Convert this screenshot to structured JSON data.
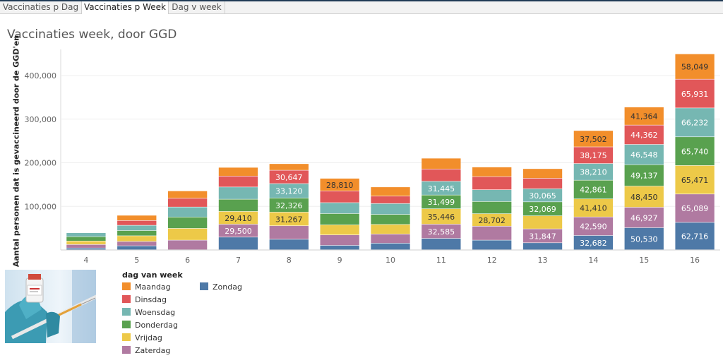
{
  "tabs": [
    {
      "label": "Vaccinaties p Dag"
    },
    {
      "label": "Vaccinaties p Week"
    },
    {
      "label": "Dag v week"
    }
  ],
  "active_tab": 1,
  "colors": {
    "Maandag": "#f28e2b",
    "Dinsdag": "#e15759",
    "Woensdag": "#76b7b2",
    "Donderdag": "#59a14f",
    "Vrijdag": "#edc948",
    "Zaterdag": "#b07aa1",
    "Zondag": "#4e79a7"
  },
  "illustration": {
    "icon": "vaccine-vial-syringe-photo"
  },
  "chart_data": {
    "type": "bar",
    "stacked": true,
    "title": "Vaccinaties week, door GGD",
    "ylabel": "Aantal personen dat is gevaccineerd door de GGD'en",
    "xlabel": "",
    "ylim": [
      0,
      460000
    ],
    "yticks": [
      100000,
      200000,
      300000,
      400000
    ],
    "ytick_labels": [
      "100,000",
      "200,000",
      "300,000",
      "400,000"
    ],
    "grid": true,
    "legend_title": "dag van week",
    "legend_position": "bottom-left",
    "categories": [
      "4",
      "5",
      "6",
      "7",
      "8",
      "9",
      "10",
      "11",
      "12",
      "13",
      "14",
      "15",
      "16"
    ],
    "series": [
      {
        "name": "Zondag",
        "values": [
          4000,
          9000,
          0,
          29000,
          24000,
          10000,
          15000,
          26000,
          22000,
          16000,
          32682,
          50530,
          62716
        ],
        "labels": [
          "",
          "",
          "",
          "",
          "",
          "",
          "",
          "",
          "",
          "",
          "32,682",
          "50,530",
          "62,716"
        ]
      },
      {
        "name": "Zaterdag",
        "values": [
          8000,
          10000,
          22000,
          29500,
          31000,
          24000,
          21000,
          32585,
          32000,
          31847,
          42590,
          46927,
          65089
        ],
        "labels": [
          "",
          "",
          "",
          "29,500",
          "",
          "",
          "",
          "32,585",
          "",
          "31,847",
          "42,590",
          "46,927",
          "65,089"
        ]
      },
      {
        "name": "Vrijdag",
        "values": [
          8000,
          13000,
          27000,
          29410,
          31267,
          23000,
          22000,
          35446,
          28702,
          30000,
          41410,
          48450,
          65471
        ],
        "labels": [
          "",
          "",
          "",
          "29,410",
          "31,267",
          "",
          "",
          "35,446",
          "28,702",
          "",
          "41,410",
          "48,450",
          "65,471"
        ]
      },
      {
        "name": "Donderdag",
        "values": [
          10000,
          12000,
          26000,
          28000,
          32326,
          26000,
          23000,
          31499,
          28000,
          32069,
          42861,
          49137,
          65740
        ],
        "labels": [
          "",
          "",
          "",
          "",
          "32,326",
          "",
          "",
          "31,499",
          "",
          "32,069",
          "42,861",
          "49,137",
          "65,740"
        ]
      },
      {
        "name": "Woensdag",
        "values": [
          9000,
          12000,
          23000,
          28000,
          33120,
          25000,
          25000,
          31445,
          27000,
          30065,
          38210,
          46548,
          66232
        ],
        "labels": [
          "",
          "",
          "",
          "",
          "33,120",
          "",
          "",
          "31,445",
          "",
          "30,065",
          "38,210",
          "46,548",
          "66,232"
        ]
      },
      {
        "name": "Dinsdag",
        "values": [
          0,
          11000,
          20000,
          25000,
          30647,
          27000,
          17000,
          28000,
          30000,
          24000,
          38175,
          44362,
          65931
        ],
        "labels": [
          "",
          "",
          "",
          "",
          "30,647",
          "",
          "",
          "",
          "",
          "",
          "38,175",
          "44,362",
          "65,931"
        ]
      },
      {
        "name": "Maandag",
        "values": [
          0,
          12000,
          17000,
          20000,
          15000,
          28810,
          21000,
          25000,
          22000,
          22000,
          37502,
          41364,
          58049
        ],
        "labels": [
          "",
          "",
          "",
          "",
          "",
          "28,810",
          "",
          "",
          "",
          "",
          "37,502",
          "41,364",
          "58,049"
        ]
      }
    ]
  }
}
